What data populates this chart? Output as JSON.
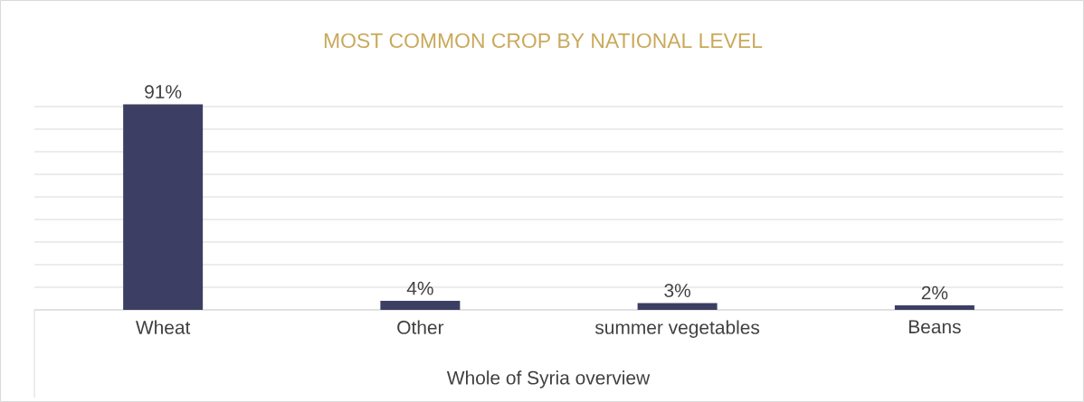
{
  "chart_data": {
    "type": "bar",
    "title": "MOST COMMON CROP BY NATIONAL LEVEL",
    "xlabel": "Whole of Syria overview",
    "categories": [
      "Wheat",
      "Other",
      "summer vegetables",
      "Beans"
    ],
    "values": [
      91,
      4,
      3,
      2
    ],
    "value_labels": [
      "91%",
      "4%",
      "3%",
      "2%"
    ],
    "color": "#3c3f63",
    "grid": "y",
    "tick_labels": "x"
  }
}
